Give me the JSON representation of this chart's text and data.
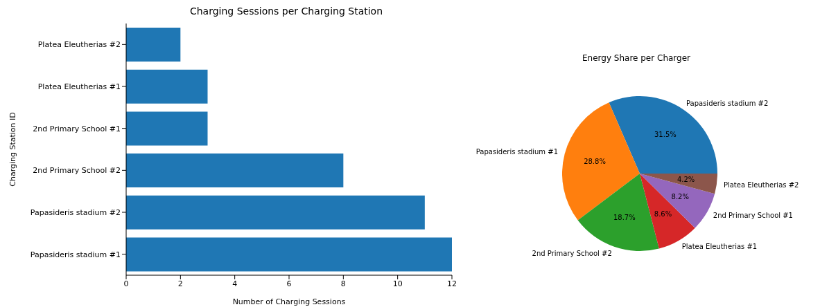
{
  "chart_data": [
    {
      "type": "bar",
      "orientation": "horizontal",
      "title": "Charging Sessions per Charging Station",
      "xlabel": "Number of Charging Sessions",
      "ylabel": "Charging Station ID",
      "categories": [
        "Platea Eleutherias #2",
        "Platea Eleutherias #1",
        "2nd Primary School #1",
        "2nd Primary School #2",
        "Papasideris stadium #2",
        "Papasideris stadium #1"
      ],
      "values": [
        2,
        3,
        3,
        8,
        11,
        12
      ],
      "color": "#1f77b4",
      "xlim": [
        0,
        12
      ],
      "xticks": [
        0,
        2,
        4,
        6,
        8,
        10,
        12
      ],
      "grid": false,
      "legend": false
    },
    {
      "type": "pie",
      "title": "Energy Share per Charger",
      "categories": [
        "Papasideris stadium #2",
        "Papasideris stadium #1",
        "2nd Primary School #2",
        "Platea Eleutherias #1",
        "2nd Primary School #1",
        "Platea Eleutherias #2"
      ],
      "values": [
        31.5,
        28.8,
        18.7,
        8.6,
        8.2,
        4.2
      ],
      "value_labels": [
        "31.5%",
        "28.8%",
        "18.7%",
        "8.6%",
        "8.2%",
        "4.2%"
      ],
      "colors": [
        "#1f77b4",
        "#ff7f0e",
        "#2ca02c",
        "#d62728",
        "#9467bd",
        "#8c564b"
      ],
      "legend": false
    }
  ]
}
